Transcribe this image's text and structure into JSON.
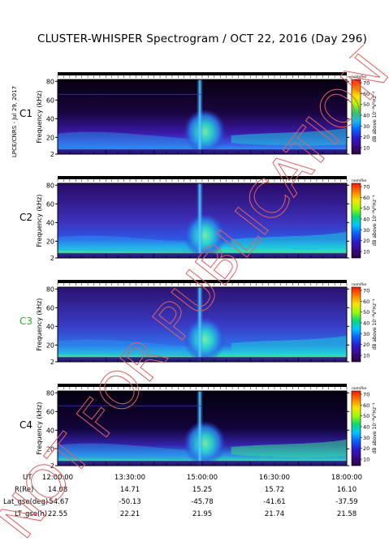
{
  "title": "CLUSTER-WHISPER Spectrogram / OCT 22, 2016 (Day 296)",
  "side_note": "LPCE/CNRS - Jul 29, 2017",
  "watermark": "NOT FOR PUBLICATION",
  "colorbar": {
    "label": "dB above 10⁻⁸V²Hz⁻¹",
    "top_label": "nomifier",
    "ticks": [
      "70",
      "60",
      "50",
      "40",
      "30",
      "20",
      "10"
    ],
    "stops": [
      "#ff1500",
      "#ff7a00",
      "#ffe000",
      "#9bff00",
      "#10d870",
      "#00c8ff",
      "#0a64ff",
      "#2a1ccc",
      "#3b0a8e",
      "#2a0040"
    ]
  },
  "colors": {
    "c1": "#000000",
    "c2": "#000000",
    "c3": "#1fb81f",
    "c4": "#000000"
  },
  "chart_data": {
    "type": "heatmap",
    "panels": [
      {
        "id": "C1",
        "ylabel": "Frequency (kHz)",
        "yticks": [
          2,
          20,
          40,
          60,
          80
        ],
        "ylim": [
          2,
          82
        ]
      },
      {
        "id": "C2",
        "ylabel": "Frequency (kHz)",
        "yticks": [
          2,
          20,
          40,
          60,
          80
        ],
        "ylim": [
          2,
          82
        ]
      },
      {
        "id": "C3",
        "ylabel": "Frequency (kHz)",
        "yticks": [
          2,
          20,
          40,
          60,
          80
        ],
        "ylim": [
          2,
          82
        ]
      },
      {
        "id": "C4",
        "ylabel": "Frequency (kHz)",
        "yticks": [
          2,
          20,
          40,
          60,
          80
        ],
        "ylim": [
          2,
          82
        ]
      }
    ],
    "x_ticks": [
      "12:00:00",
      "13:30:00",
      "15:00:00",
      "16:30:00",
      "18:00:00"
    ],
    "x_range_hours": [
      12,
      18
    ],
    "zlim": [
      10,
      70
    ],
    "ephemeris": [
      {
        "label": "UT",
        "values": [
          "12:00:00",
          "13:30:00",
          "15:00:00",
          "16:30:00",
          "18:00:00"
        ]
      },
      {
        "label": "R(Re)",
        "values": [
          "14.08",
          "14.71",
          "15.25",
          "15.72",
          "16.10"
        ]
      },
      {
        "label": "Lat_gse(deg)",
        "values": [
          "-54.67",
          "-50.13",
          "-45.78",
          "-41.61",
          "-37.59"
        ]
      },
      {
        "label": "LT_gse(h)",
        "values": [
          "22.55",
          "22.21",
          "21.95",
          "21.74",
          "21.58"
        ]
      }
    ]
  }
}
